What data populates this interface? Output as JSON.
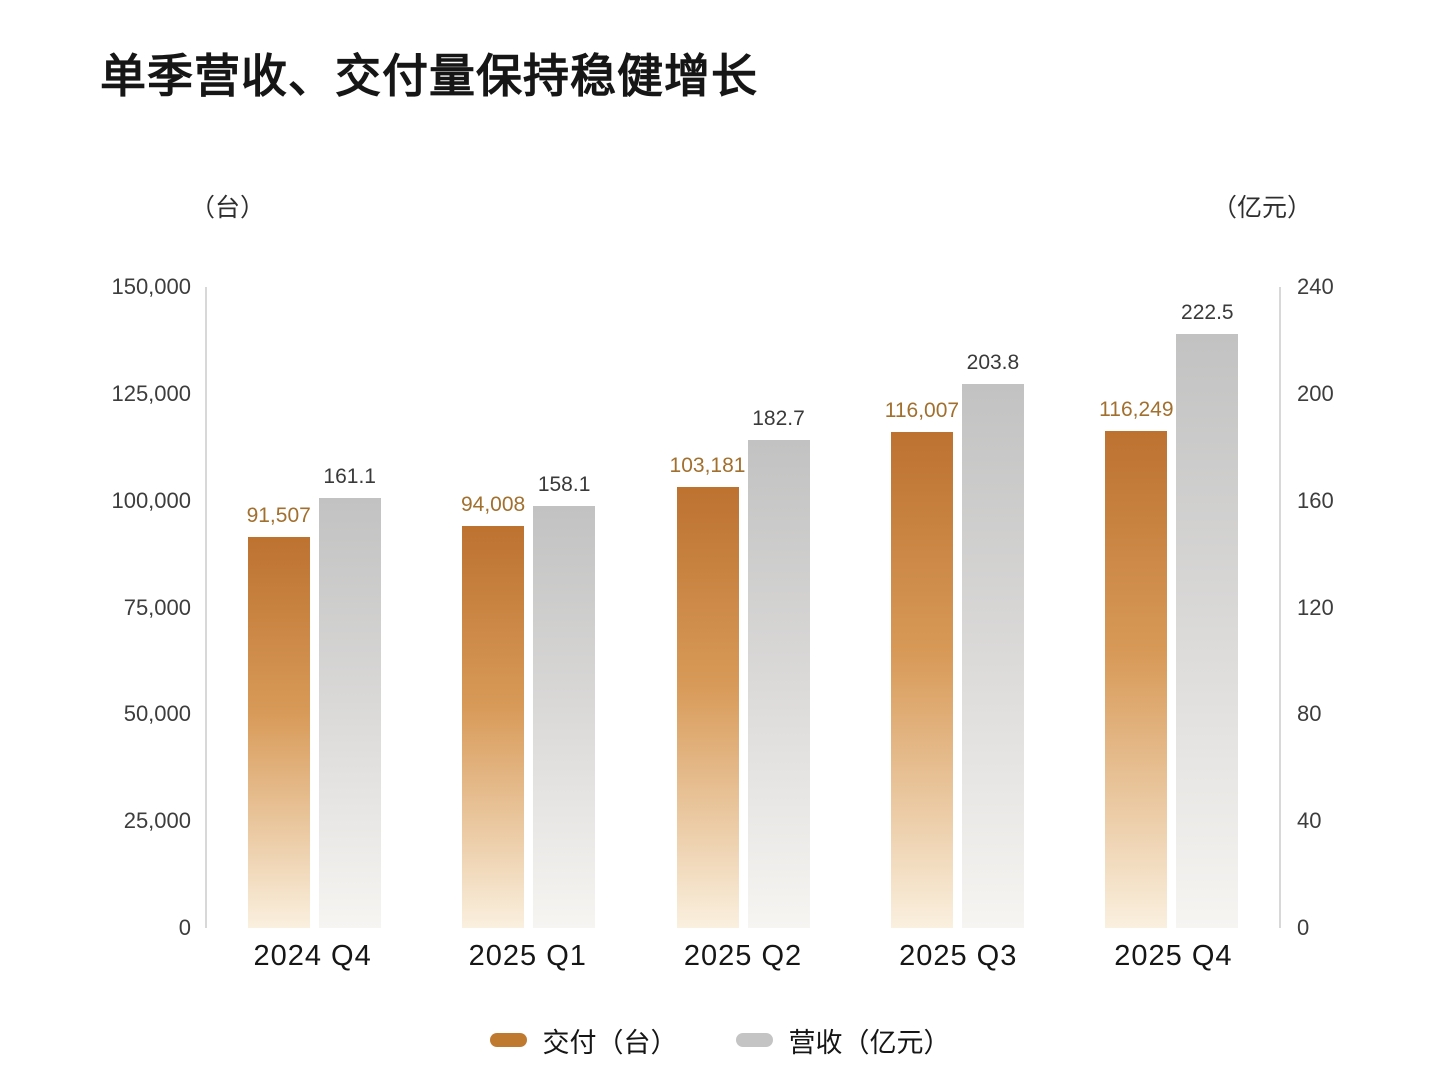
{
  "title": "单季营收、交付量保持稳健增长",
  "left_axis_unit": "（台）",
  "right_axis_unit": "（亿元）",
  "chart_data": {
    "type": "bar",
    "categories": [
      "2024 Q4",
      "2025 Q1",
      "2025 Q2",
      "2025 Q3",
      "2025 Q4"
    ],
    "series": [
      {
        "name": "交付（台）",
        "axis": "left",
        "values": [
          91507,
          94008,
          103181,
          116007,
          116249
        ],
        "labels": [
          "91,507",
          "94,008",
          "103,181",
          "116,007",
          "116,249"
        ],
        "color_top": "#bd7230",
        "color_mid": "#d89a58",
        "color_bottom": "#faf0df",
        "label_color": "#a2702e",
        "swatch_color": "#bf7a30"
      },
      {
        "name": "营收（亿元）",
        "axis": "right",
        "values": [
          161.1,
          158.1,
          182.7,
          203.8,
          222.5
        ],
        "labels": [
          "161.1",
          "158.1",
          "182.7",
          "203.8",
          "222.5"
        ],
        "color_top": "#c2c2c2",
        "color_mid": "#d8d7d6",
        "color_bottom": "#f7f5f2",
        "label_color": "#3a3a3a",
        "swatch_color": "#c4c4c4"
      }
    ],
    "left_axis": {
      "min": 0,
      "max": 150000,
      "ticks": [
        "150,000",
        "125,000",
        "100,000",
        "75,000",
        "50,000",
        "25,000",
        "0"
      ]
    },
    "right_axis": {
      "min": 0,
      "max": 240,
      "ticks": [
        "240",
        "200",
        "160",
        "120",
        "80",
        "40",
        "0"
      ]
    },
    "legend_position": "bottom",
    "grid": false
  }
}
